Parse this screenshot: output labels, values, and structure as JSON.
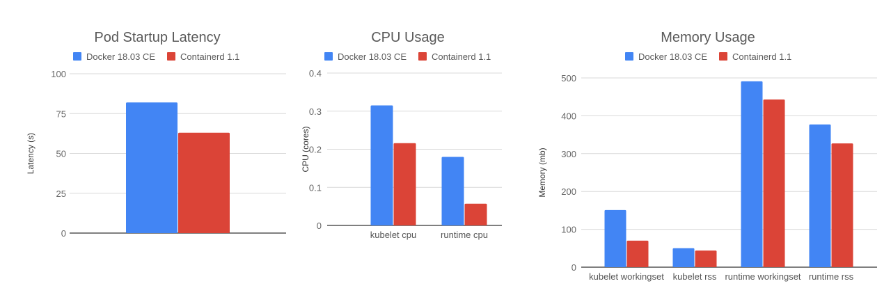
{
  "chart_data": [
    {
      "type": "bar",
      "title": "Pod Startup Latency",
      "xlabel": "",
      "ylabel": "Latency (s)",
      "ylim": [
        0,
        100
      ],
      "yticks": [
        "0",
        "25",
        "50",
        "75",
        "100"
      ],
      "categories": [
        ""
      ],
      "legend_position": "top",
      "grid": true,
      "series": [
        {
          "name": "Docker 18.03 CE",
          "color": "#4285f4",
          "values": [
            82
          ]
        },
        {
          "name": "Containerd 1.1",
          "color": "#db4437",
          "values": [
            63
          ]
        }
      ]
    },
    {
      "type": "bar",
      "title": "CPU Usage",
      "xlabel": "",
      "ylabel": "CPU (cores)",
      "ylim": [
        0,
        0.4
      ],
      "yticks": [
        "0",
        "0.1",
        "0.2",
        "0.3",
        "0.4"
      ],
      "categories": [
        "kubelet cpu",
        "runtime cpu"
      ],
      "legend_position": "top",
      "grid": true,
      "series": [
        {
          "name": "Docker 18.03 CE",
          "color": "#4285f4",
          "values": [
            0.315,
            0.18
          ]
        },
        {
          "name": "Containerd 1.1",
          "color": "#db4437",
          "values": [
            0.216,
            0.057
          ]
        }
      ]
    },
    {
      "type": "bar",
      "title": "Memory Usage",
      "xlabel": "",
      "ylabel": "Memory (mb)",
      "ylim": [
        0,
        500
      ],
      "yticks": [
        "0",
        "100",
        "200",
        "300",
        "400",
        "500"
      ],
      "categories": [
        "kubelet workingset",
        "kubelet rss",
        "runtime workingset",
        "runtime rss"
      ],
      "legend_position": "top",
      "grid": true,
      "series": [
        {
          "name": "Docker 18.03 CE",
          "color": "#4285f4",
          "values": [
            151,
            50,
            491,
            377
          ]
        },
        {
          "name": "Containerd 1.1",
          "color": "#db4437",
          "values": [
            70,
            44,
            443,
            327
          ]
        }
      ]
    }
  ]
}
